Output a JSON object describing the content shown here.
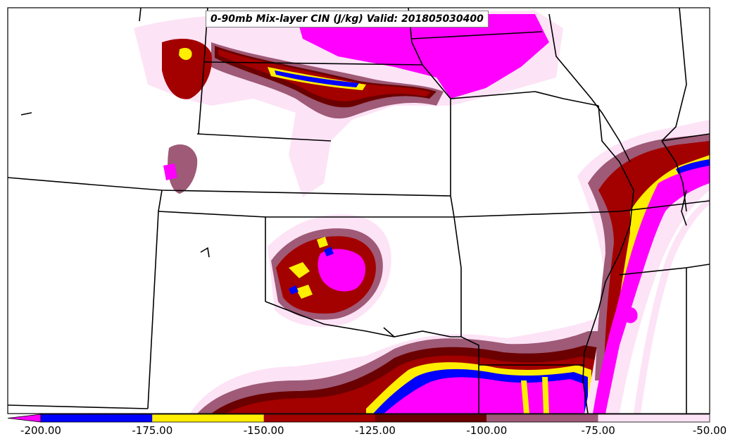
{
  "title": "0-90mb Mix-layer CIN (J/kg) Valid: 201805030400",
  "colorbar": {
    "bins": [
      {
        "from": -200,
        "to": -175,
        "color": "#0000ff"
      },
      {
        "from": -175,
        "to": -150,
        "color": "#ffee00"
      },
      {
        "from": -150,
        "to": -125,
        "color": "#a30000"
      },
      {
        "from": -125,
        "to": -100,
        "color": "#6b0000"
      },
      {
        "from": -100,
        "to": -75,
        "color": "#9e5a76"
      },
      {
        "from": -75,
        "to": -50,
        "color": "#fde3f6"
      }
    ],
    "under_color": "#ff00ff",
    "ticks": [
      "-200.00",
      "-175.00",
      "-150.00",
      "-125.00",
      "-100.00",
      "-75.00",
      "-50.00"
    ]
  },
  "colors": {
    "border": "#000000",
    "background": "#ffffff"
  }
}
